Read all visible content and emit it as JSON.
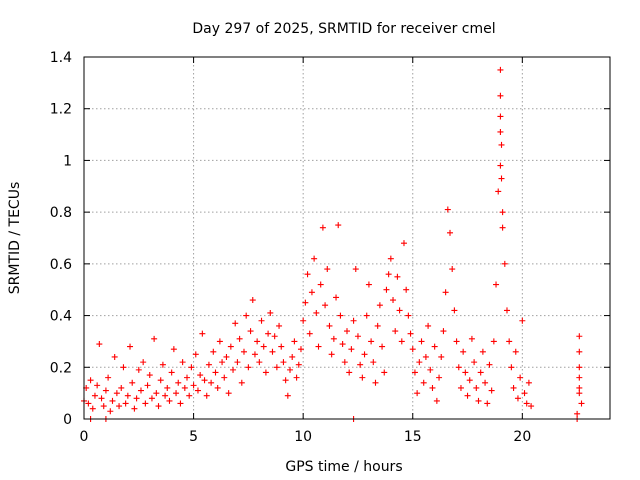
{
  "chart_data": {
    "type": "scatter",
    "title": "Day 297 of 2025, SRMTID for receiver cmel",
    "xlabel": "GPS time / hours",
    "ylabel": "SRMTID / TECUs",
    "xlim": [
      0,
      24
    ],
    "ylim": [
      0,
      1.4
    ],
    "xticks": [
      0,
      5,
      10,
      15,
      20
    ],
    "yticks": [
      0,
      0.2,
      0.4,
      0.6,
      0.8,
      1,
      1.2,
      1.4
    ],
    "xtick_labels": [
      "0",
      "5",
      "10",
      "15",
      "20"
    ],
    "ytick_labels": [
      "0",
      "0.2",
      "0.4",
      "0.6",
      "0.8",
      "1",
      "1.2",
      "1.4"
    ],
    "grid": true,
    "marker": "+",
    "color": "#ff0000",
    "series": [
      {
        "name": "SRMTID",
        "points": [
          [
            0.0,
            0.07
          ],
          [
            0.1,
            0.12
          ],
          [
            0.2,
            0.06
          ],
          [
            0.3,
            0.15
          ],
          [
            0.4,
            0.04
          ],
          [
            0.5,
            0.09
          ],
          [
            0.6,
            0.13
          ],
          [
            0.7,
            0.29
          ],
          [
            0.8,
            0.08
          ],
          [
            0.9,
            0.05
          ],
          [
            1.0,
            0.11
          ],
          [
            1.1,
            0.16
          ],
          [
            1.2,
            0.03
          ],
          [
            1.3,
            0.07
          ],
          [
            1.4,
            0.24
          ],
          [
            1.5,
            0.1
          ],
          [
            1.6,
            0.05
          ],
          [
            1.7,
            0.12
          ],
          [
            1.8,
            0.2
          ],
          [
            1.9,
            0.06
          ],
          [
            2.0,
            0.09
          ],
          [
            2.1,
            0.28
          ],
          [
            2.2,
            0.14
          ],
          [
            2.3,
            0.04
          ],
          [
            2.4,
            0.08
          ],
          [
            2.5,
            0.19
          ],
          [
            2.6,
            0.11
          ],
          [
            2.7,
            0.22
          ],
          [
            2.8,
            0.06
          ],
          [
            2.9,
            0.13
          ],
          [
            3.0,
            0.17
          ],
          [
            3.1,
            0.08
          ],
          [
            3.2,
            0.31
          ],
          [
            3.3,
            0.1
          ],
          [
            3.4,
            0.05
          ],
          [
            3.5,
            0.15
          ],
          [
            3.6,
            0.21
          ],
          [
            3.7,
            0.09
          ],
          [
            3.8,
            0.12
          ],
          [
            3.9,
            0.07
          ],
          [
            4.0,
            0.18
          ],
          [
            4.1,
            0.27
          ],
          [
            4.2,
            0.1
          ],
          [
            4.3,
            0.14
          ],
          [
            4.4,
            0.06
          ],
          [
            4.5,
            0.22
          ],
          [
            4.6,
            0.12
          ],
          [
            4.7,
            0.16
          ],
          [
            4.8,
            0.09
          ],
          [
            4.9,
            0.2
          ],
          [
            5.0,
            0.13
          ],
          [
            5.1,
            0.25
          ],
          [
            5.2,
            0.11
          ],
          [
            5.3,
            0.17
          ],
          [
            5.4,
            0.33
          ],
          [
            5.5,
            0.15
          ],
          [
            5.6,
            0.09
          ],
          [
            5.7,
            0.21
          ],
          [
            5.8,
            0.14
          ],
          [
            5.9,
            0.26
          ],
          [
            6.0,
            0.18
          ],
          [
            6.1,
            0.12
          ],
          [
            6.2,
            0.3
          ],
          [
            6.3,
            0.22
          ],
          [
            6.4,
            0.16
          ],
          [
            6.5,
            0.24
          ],
          [
            6.6,
            0.1
          ],
          [
            6.7,
            0.28
          ],
          [
            6.8,
            0.19
          ],
          [
            6.9,
            0.37
          ],
          [
            7.0,
            0.22
          ],
          [
            7.1,
            0.31
          ],
          [
            7.2,
            0.14
          ],
          [
            7.3,
            0.26
          ],
          [
            7.4,
            0.4
          ],
          [
            7.5,
            0.2
          ],
          [
            7.6,
            0.34
          ],
          [
            7.7,
            0.46
          ],
          [
            7.8,
            0.25
          ],
          [
            7.9,
            0.3
          ],
          [
            8.0,
            0.22
          ],
          [
            8.1,
            0.38
          ],
          [
            8.2,
            0.28
          ],
          [
            8.3,
            0.18
          ],
          [
            8.4,
            0.33
          ],
          [
            8.5,
            0.41
          ],
          [
            8.6,
            0.26
          ],
          [
            8.7,
            0.32
          ],
          [
            8.8,
            0.2
          ],
          [
            8.9,
            0.36
          ],
          [
            9.0,
            0.28
          ],
          [
            9.1,
            0.22
          ],
          [
            9.2,
            0.15
          ],
          [
            9.3,
            0.09
          ],
          [
            9.4,
            0.19
          ],
          [
            9.5,
            0.24
          ],
          [
            9.6,
            0.3
          ],
          [
            9.7,
            0.16
          ],
          [
            9.8,
            0.21
          ],
          [
            9.9,
            0.27
          ],
          [
            10.0,
            0.38
          ],
          [
            10.1,
            0.45
          ],
          [
            10.2,
            0.56
          ],
          [
            10.3,
            0.33
          ],
          [
            10.4,
            0.49
          ],
          [
            10.5,
            0.62
          ],
          [
            10.6,
            0.41
          ],
          [
            10.7,
            0.28
          ],
          [
            10.8,
            0.52
          ],
          [
            10.9,
            0.74
          ],
          [
            11.0,
            0.44
          ],
          [
            11.1,
            0.58
          ],
          [
            11.2,
            0.36
          ],
          [
            11.3,
            0.25
          ],
          [
            11.4,
            0.31
          ],
          [
            11.5,
            0.47
          ],
          [
            11.6,
            0.75
          ],
          [
            11.7,
            0.4
          ],
          [
            11.8,
            0.29
          ],
          [
            11.9,
            0.22
          ],
          [
            12.0,
            0.34
          ],
          [
            12.1,
            0.18
          ],
          [
            12.2,
            0.27
          ],
          [
            12.3,
            0.38
          ],
          [
            12.4,
            0.58
          ],
          [
            12.5,
            0.32
          ],
          [
            12.6,
            0.21
          ],
          [
            12.7,
            0.16
          ],
          [
            12.8,
            0.25
          ],
          [
            12.9,
            0.4
          ],
          [
            13.0,
            0.52
          ],
          [
            13.1,
            0.3
          ],
          [
            13.2,
            0.22
          ],
          [
            13.3,
            0.14
          ],
          [
            13.4,
            0.36
          ],
          [
            13.5,
            0.44
          ],
          [
            13.6,
            0.28
          ],
          [
            13.7,
            0.18
          ],
          [
            13.8,
            0.5
          ],
          [
            13.9,
            0.56
          ],
          [
            14.0,
            0.62
          ],
          [
            14.1,
            0.46
          ],
          [
            14.2,
            0.34
          ],
          [
            14.3,
            0.55
          ],
          [
            14.4,
            0.42
          ],
          [
            14.5,
            0.3
          ],
          [
            14.6,
            0.68
          ],
          [
            14.7,
            0.5
          ],
          [
            14.8,
            0.4
          ],
          [
            14.9,
            0.33
          ],
          [
            15.0,
            0.27
          ],
          [
            15.1,
            0.18
          ],
          [
            15.2,
            0.1
          ],
          [
            15.3,
            0.22
          ],
          [
            15.4,
            0.3
          ],
          [
            15.5,
            0.14
          ],
          [
            15.6,
            0.24
          ],
          [
            15.7,
            0.36
          ],
          [
            15.8,
            0.19
          ],
          [
            15.9,
            0.12
          ],
          [
            16.0,
            0.28
          ],
          [
            16.1,
            0.07
          ],
          [
            16.2,
            0.16
          ],
          [
            16.3,
            0.24
          ],
          [
            16.4,
            0.34
          ],
          [
            16.5,
            0.49
          ],
          [
            16.6,
            0.81
          ],
          [
            16.7,
            0.72
          ],
          [
            16.8,
            0.58
          ],
          [
            16.9,
            0.42
          ],
          [
            17.0,
            0.3
          ],
          [
            17.1,
            0.2
          ],
          [
            17.2,
            0.12
          ],
          [
            17.3,
            0.26
          ],
          [
            17.4,
            0.18
          ],
          [
            17.5,
            0.09
          ],
          [
            17.6,
            0.15
          ],
          [
            17.7,
            0.31
          ],
          [
            17.8,
            0.22
          ],
          [
            17.9,
            0.12
          ],
          [
            18.0,
            0.07
          ],
          [
            18.1,
            0.18
          ],
          [
            18.2,
            0.26
          ],
          [
            18.3,
            0.14
          ],
          [
            18.4,
            0.06
          ],
          [
            18.5,
            0.21
          ],
          [
            18.6,
            0.11
          ],
          [
            18.7,
            0.3
          ],
          [
            18.8,
            0.52
          ],
          [
            18.9,
            0.88
          ],
          [
            19.0,
            1.35
          ],
          [
            19.0,
            1.25
          ],
          [
            19.0,
            1.17
          ],
          [
            19.0,
            1.11
          ],
          [
            19.05,
            1.06
          ],
          [
            19.0,
            0.98
          ],
          [
            19.05,
            0.93
          ],
          [
            19.1,
            0.8
          ],
          [
            19.1,
            0.74
          ],
          [
            19.2,
            0.6
          ],
          [
            19.3,
            0.42
          ],
          [
            19.4,
            0.3
          ],
          [
            19.5,
            0.2
          ],
          [
            19.6,
            0.12
          ],
          [
            19.7,
            0.26
          ],
          [
            19.8,
            0.08
          ],
          [
            19.9,
            0.16
          ],
          [
            20.0,
            0.38
          ],
          [
            20.1,
            0.1
          ],
          [
            20.2,
            0.06
          ],
          [
            20.3,
            0.14
          ],
          [
            20.4,
            0.05
          ],
          [
            22.5,
            0.02
          ],
          [
            22.6,
            0.1
          ],
          [
            22.6,
            0.16
          ],
          [
            22.6,
            0.2
          ],
          [
            22.6,
            0.26
          ],
          [
            22.6,
            0.32
          ],
          [
            22.7,
            0.06
          ],
          [
            22.6,
            0.12
          ],
          [
            0.3,
            0.0
          ],
          [
            1.0,
            0.0
          ],
          [
            12.3,
            0.0
          ],
          [
            22.5,
            0.0
          ]
        ]
      }
    ]
  }
}
